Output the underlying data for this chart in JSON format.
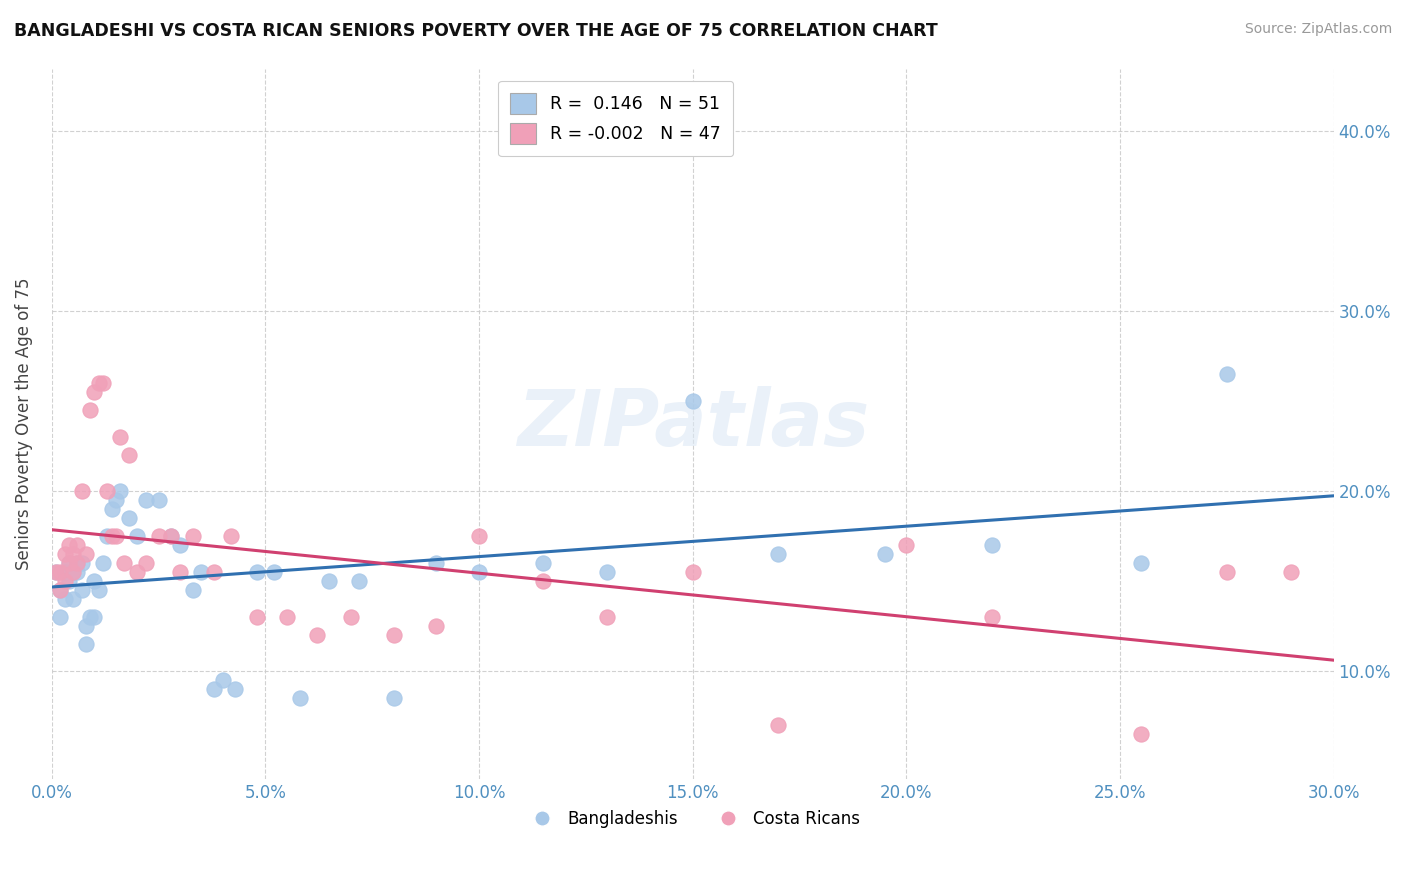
{
  "title": "BANGLADESHI VS COSTA RICAN SENIORS POVERTY OVER THE AGE OF 75 CORRELATION CHART",
  "source": "Source: ZipAtlas.com",
  "ylabel": "Seniors Poverty Over the Age of 75",
  "xlim": [
    0.0,
    0.3
  ],
  "ylim": [
    0.04,
    0.435
  ],
  "xtick_vals": [
    0.0,
    0.05,
    0.1,
    0.15,
    0.2,
    0.25,
    0.3
  ],
  "ytick_vals": [
    0.1,
    0.2,
    0.3,
    0.4
  ],
  "bangladeshi_color": "#a8c8e8",
  "costa_rican_color": "#f0a0b8",
  "trend_bangladeshi_color": "#3070b0",
  "trend_costa_rican_color": "#d04070",
  "R_bangladeshi": 0.146,
  "N_bangladeshi": 51,
  "R_costa_rican": -0.002,
  "N_costa_rican": 47,
  "bangladeshi_x": [
    0.001,
    0.002,
    0.002,
    0.003,
    0.003,
    0.004,
    0.004,
    0.005,
    0.005,
    0.006,
    0.006,
    0.007,
    0.007,
    0.008,
    0.008,
    0.009,
    0.01,
    0.01,
    0.011,
    0.012,
    0.013,
    0.014,
    0.015,
    0.016,
    0.018,
    0.02,
    0.022,
    0.025,
    0.028,
    0.03,
    0.033,
    0.035,
    0.038,
    0.04,
    0.043,
    0.048,
    0.052,
    0.058,
    0.065,
    0.072,
    0.08,
    0.09,
    0.1,
    0.115,
    0.13,
    0.15,
    0.17,
    0.195,
    0.22,
    0.255,
    0.275
  ],
  "bangladeshi_y": [
    0.155,
    0.13,
    0.145,
    0.14,
    0.155,
    0.15,
    0.16,
    0.155,
    0.14,
    0.16,
    0.155,
    0.145,
    0.16,
    0.115,
    0.125,
    0.13,
    0.13,
    0.15,
    0.145,
    0.16,
    0.175,
    0.19,
    0.195,
    0.2,
    0.185,
    0.175,
    0.195,
    0.195,
    0.175,
    0.17,
    0.145,
    0.155,
    0.09,
    0.095,
    0.09,
    0.155,
    0.155,
    0.085,
    0.15,
    0.15,
    0.085,
    0.16,
    0.155,
    0.16,
    0.155,
    0.25,
    0.165,
    0.165,
    0.17,
    0.16,
    0.265
  ],
  "costa_rican_x": [
    0.001,
    0.002,
    0.002,
    0.003,
    0.003,
    0.004,
    0.004,
    0.005,
    0.005,
    0.006,
    0.006,
    0.007,
    0.008,
    0.009,
    0.01,
    0.011,
    0.012,
    0.013,
    0.014,
    0.015,
    0.016,
    0.017,
    0.018,
    0.02,
    0.022,
    0.025,
    0.028,
    0.03,
    0.033,
    0.038,
    0.042,
    0.048,
    0.055,
    0.062,
    0.07,
    0.08,
    0.09,
    0.1,
    0.115,
    0.13,
    0.15,
    0.17,
    0.2,
    0.22,
    0.255,
    0.275,
    0.29
  ],
  "costa_rican_y": [
    0.155,
    0.145,
    0.155,
    0.15,
    0.165,
    0.16,
    0.17,
    0.155,
    0.165,
    0.16,
    0.17,
    0.2,
    0.165,
    0.245,
    0.255,
    0.26,
    0.26,
    0.2,
    0.175,
    0.175,
    0.23,
    0.16,
    0.22,
    0.155,
    0.16,
    0.175,
    0.175,
    0.155,
    0.175,
    0.155,
    0.175,
    0.13,
    0.13,
    0.12,
    0.13,
    0.12,
    0.125,
    0.175,
    0.15,
    0.13,
    0.155,
    0.07,
    0.17,
    0.13,
    0.065,
    0.155,
    0.155
  ],
  "legend_label_bangladeshi": "R =  0.146   N = 51",
  "legend_label_costa_rican": "R = -0.002   N = 47",
  "legend_scatter_bangladeshi": "Bangladeshis",
  "legend_scatter_costa_rican": "Costa Ricans"
}
